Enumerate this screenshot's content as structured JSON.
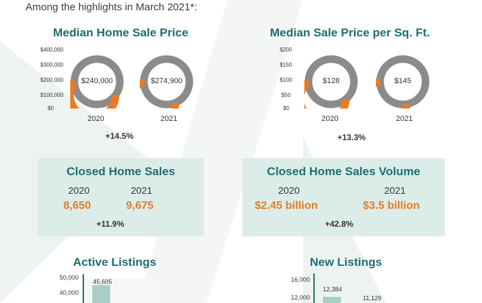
{
  "intro": "Among the highlights in March 2021*:",
  "colors": {
    "teal": "#1f6e70",
    "orange": "#ea7b25",
    "gray": "#8b8b8b",
    "box": "#dcece9",
    "bar": "#a9cec7"
  },
  "median_price": {
    "title": "Median Home Sale Price",
    "axis": [
      "$400,000",
      "$300,000",
      "$200,000",
      "$100,000",
      "$0"
    ],
    "y2020": "2020",
    "y2021": "2021",
    "v2020": "$240,000",
    "v2021": "$274,900",
    "change": "+14.5%"
  },
  "price_sqft": {
    "title": "Median Sale Price per Sq. Ft.",
    "axis": [
      "$200",
      "$150",
      "$100",
      "$50",
      "$0"
    ],
    "y2020": "2020",
    "y2021": "2021",
    "v2020": "$128",
    "v2021": "$145",
    "change": "+13.3%"
  },
  "closed_sales": {
    "title": "Closed Home Sales",
    "y2020": "2020",
    "y2021": "2021",
    "v2020": "8,650",
    "v2021": "9,675",
    "change": "+11.9%"
  },
  "closed_volume": {
    "title": "Closed Home Sales Volume",
    "y2020": "2020",
    "y2021": "2021",
    "v2020": "$2.45 billion",
    "v2021": "$3.5 billion",
    "change": "+42.8%"
  },
  "active_listings": {
    "title": "Active Listings",
    "ticks": [
      "50,000",
      "40,000"
    ],
    "bar_label": "45,605"
  },
  "new_listings": {
    "title": "New Listings",
    "ticks": [
      "16,000",
      "12,000"
    ],
    "bar_label_1": "12,384",
    "bar_label_2": "11,129"
  },
  "chart_data": [
    {
      "type": "pie",
      "title": "Median Home Sale Price",
      "categories": [
        "2020",
        "2021"
      ],
      "values": [
        240000,
        274900
      ],
      "ylim": [
        0,
        400000
      ]
    },
    {
      "type": "pie",
      "title": "Median Sale Price per Sq. Ft.",
      "categories": [
        "2020",
        "2021"
      ],
      "values": [
        128,
        145
      ],
      "ylim": [
        0,
        200
      ]
    },
    {
      "type": "bar",
      "title": "Active Listings",
      "values": [
        45605
      ],
      "ylim": [
        0,
        50000
      ]
    },
    {
      "type": "bar",
      "title": "New Listings",
      "values": [
        12384,
        11129
      ],
      "ylim": [
        0,
        16000
      ]
    }
  ]
}
